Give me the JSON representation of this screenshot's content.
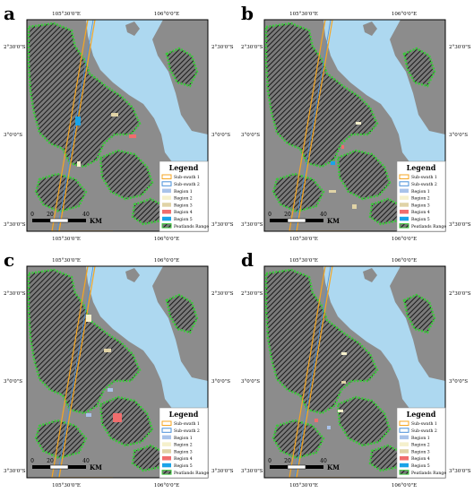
{
  "colors": {
    "sea": "#add8f0",
    "land": "#8c8c8c",
    "peat_edge": "#3cc83c",
    "subswath1": "#f5a623",
    "subswath2": "#4a90d9",
    "region1": "#a9c3ea",
    "region2": "#f5f0cc",
    "region3": "#e0d3a6",
    "region4": "#f06d6d",
    "region5": "#1aa3e8"
  },
  "axes": {
    "top_ticks": [
      "105°30'0\"E",
      "106°0'0\"E"
    ],
    "bottom_ticks": [
      "105°30'0\"E",
      "106°0'0\"E"
    ],
    "left_ticks": [
      "2°30'0\"S",
      "3°0'0\"S",
      "3°30'0\"S"
    ],
    "right_ticks": [
      "2°30'0\"S",
      "3°0'0\"S",
      "3°30'0\"S"
    ]
  },
  "scalebar": {
    "labels": [
      "0",
      "20",
      "40"
    ],
    "unit": "KM"
  },
  "legend": {
    "title": "Legend",
    "items": [
      {
        "label": "Sub-swath 1",
        "kind": "outline",
        "color": "#f5a623"
      },
      {
        "label": "Sub-swath 2",
        "kind": "outline",
        "color": "#4a90d9"
      },
      {
        "label": "Region 1",
        "kind": "fill",
        "color": "#a9c3ea"
      },
      {
        "label": "Region 2",
        "kind": "fill",
        "color": "#f5f0cc"
      },
      {
        "label": "Region 3",
        "kind": "fill",
        "color": "#e0d3a6"
      },
      {
        "label": "Region 4",
        "kind": "fill",
        "color": "#f06d6d"
      },
      {
        "label": "Region 5",
        "kind": "fill",
        "color": "#1aa3e8"
      },
      {
        "label": "Peatlands Range",
        "kind": "hatch",
        "color": "#3cc83c"
      }
    ]
  },
  "panels": [
    {
      "id": "a",
      "label": "a"
    },
    {
      "id": "b",
      "label": "b"
    },
    {
      "id": "c",
      "label": "c"
    },
    {
      "id": "d",
      "label": "d"
    }
  ]
}
